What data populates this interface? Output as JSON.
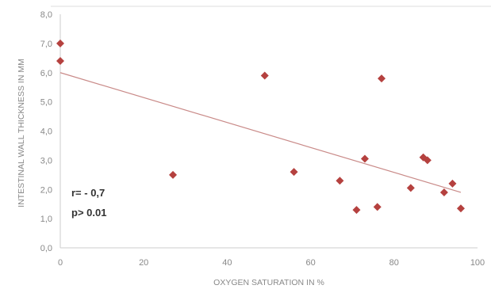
{
  "chart_data": {
    "type": "scatter",
    "xlabel": "OXYGEN SATURATION IN %",
    "ylabel": "INTESTINAL WALL THICKNESS IN MM",
    "xlim": [
      0,
      100
    ],
    "ylim": [
      0,
      8
    ],
    "x_ticks": [
      "0",
      "20",
      "40",
      "60",
      "80",
      "100"
    ],
    "y_ticks": [
      "0,0",
      "1,0",
      "2,0",
      "3,0",
      "4,0",
      "5,0",
      "6,0",
      "7,0",
      "8,0"
    ],
    "grid": false,
    "legend": "none",
    "colors": {
      "marker": "#b5413f",
      "trendline": "#c98a88",
      "axis": "#cccccc"
    },
    "series": [
      {
        "points": [
          [
            0,
            7.0
          ],
          [
            0,
            6.4
          ],
          [
            27,
            2.5
          ],
          [
            49,
            5.9
          ],
          [
            56,
            2.6
          ],
          [
            67,
            2.3
          ],
          [
            71,
            1.3
          ],
          [
            73,
            3.05
          ],
          [
            76,
            1.4
          ],
          [
            77,
            5.8
          ],
          [
            84,
            2.05
          ],
          [
            87,
            3.1
          ],
          [
            88,
            3.0
          ],
          [
            92,
            1.9
          ],
          [
            94,
            2.2
          ],
          [
            96,
            1.35
          ]
        ]
      }
    ],
    "trendline": {
      "x": [
        0,
        96
      ],
      "y": [
        6.0,
        1.9
      ]
    },
    "annotations": [
      "r= - 0,7",
      "p> 0.01"
    ]
  }
}
